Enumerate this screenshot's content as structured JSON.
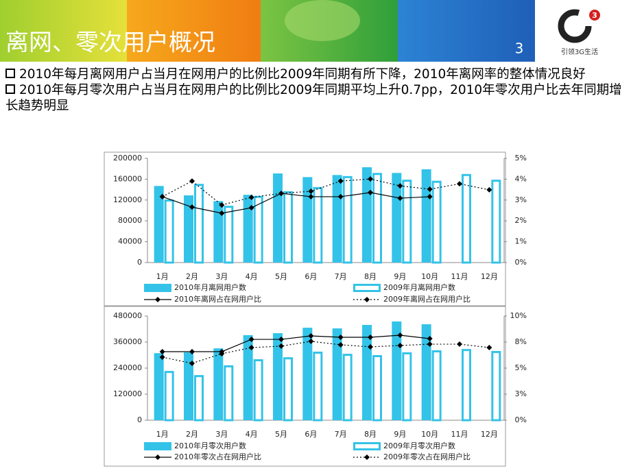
{
  "header": {
    "title": "离网、零次用户概况",
    "page_number": "3",
    "logo_badge": "3",
    "logo_slogan": "引领3G生活"
  },
  "bullets": [
    "2010年每月离网用户占当月在网用户的比例比2009年同期有所下降，2010年离网率的整体情况良好",
    "2010年每月零次用户占当月在网用户的比例比2009年同期平均上升0.7pp，2010年零次用户比去年同期增长趋势明显"
  ],
  "chart_data": [
    {
      "type": "combo",
      "categories": [
        "1月",
        "2月",
        "3月",
        "4月",
        "5月",
        "6月",
        "7月",
        "8月",
        "9月",
        "10月",
        "11月",
        "12月"
      ],
      "ylim": [
        0,
        200000
      ],
      "yticks": [
        0,
        40000,
        80000,
        120000,
        160000,
        200000
      ],
      "y2lim": [
        0,
        5
      ],
      "y2ticks": [
        {
          "value": 0,
          "label": "0%"
        },
        {
          "value": 1,
          "label": "1%"
        },
        {
          "value": 2,
          "label": "2%"
        },
        {
          "value": 3,
          "label": "3%"
        },
        {
          "value": 4,
          "label": "4%"
        },
        {
          "value": 5,
          "label": "5%"
        }
      ],
      "series": [
        {
          "name": "2010年月离网用户数",
          "type": "bar",
          "style": "solid",
          "color": "#33c3e8",
          "values": [
            147000,
            129000,
            118000,
            130000,
            171000,
            164000,
            168000,
            183000,
            172000,
            179000,
            null,
            null
          ]
        },
        {
          "name": "2009年月离网用户数",
          "type": "bar",
          "style": "outline",
          "color": "#33c3e8",
          "values": [
            121000,
            151000,
            109000,
            128000,
            137000,
            145000,
            166000,
            172000,
            159000,
            157000,
            170000,
            159000
          ]
        },
        {
          "name": "2010年离网占在网用户比",
          "type": "line",
          "style": "solid",
          "color": "#000000",
          "axis": "y2",
          "values": [
            3.16,
            2.66,
            2.37,
            2.63,
            3.32,
            3.16,
            3.16,
            3.36,
            3.09,
            3.16,
            null,
            null
          ]
        },
        {
          "name": "2009年离网占在网用户比",
          "type": "line",
          "style": "dotted",
          "color": "#000000",
          "axis": "y2",
          "values": [
            3.16,
            3.91,
            2.76,
            3.13,
            3.32,
            3.42,
            3.91,
            4.01,
            3.68,
            3.52,
            3.78,
            3.49
          ]
        }
      ]
    },
    {
      "type": "combo",
      "categories": [
        "1月",
        "2月",
        "3月",
        "4月",
        "5月",
        "6月",
        "7月",
        "8月",
        "9月",
        "10月",
        "11月",
        "12月"
      ],
      "ylim": [
        0,
        480000
      ],
      "yticks": [
        0,
        120000,
        240000,
        360000,
        480000
      ],
      "y2lim": [
        0,
        10
      ],
      "y2ticks": [
        {
          "value": 0,
          "label": "0%"
        },
        {
          "value": 2.5,
          "label": "3%"
        },
        {
          "value": 5,
          "label": "5%"
        },
        {
          "value": 7.5,
          "label": "8%"
        },
        {
          "value": 10,
          "label": "10%"
        }
      ],
      "series": [
        {
          "name": "2010年月零次用户数",
          "type": "bar",
          "style": "solid",
          "color": "#33c3e8",
          "values": [
            309000,
            313000,
            331000,
            392000,
            401000,
            426000,
            423000,
            439000,
            455000,
            442000,
            null,
            null
          ]
        },
        {
          "name": "2009年月零次用户数",
          "type": "bar",
          "style": "outline",
          "color": "#33c3e8",
          "values": [
            227000,
            208000,
            253000,
            281000,
            290000,
            316000,
            306000,
            300000,
            313000,
            322000,
            328000,
            319000
          ]
        },
        {
          "name": "2010年零次占在网用户比",
          "type": "line",
          "style": "solid",
          "color": "#000000",
          "axis": "y2",
          "values": [
            6.58,
            6.58,
            6.58,
            7.76,
            7.76,
            8.09,
            7.96,
            7.96,
            8.16,
            7.83,
            null,
            null
          ]
        },
        {
          "name": "2009年零次占在网用户比",
          "type": "line",
          "style": "dotted",
          "color": "#000000",
          "axis": "y2",
          "values": [
            6.05,
            5.46,
            6.38,
            6.97,
            7.11,
            7.57,
            7.24,
            7.04,
            7.17,
            7.3,
            7.3,
            6.97
          ]
        }
      ]
    }
  ]
}
